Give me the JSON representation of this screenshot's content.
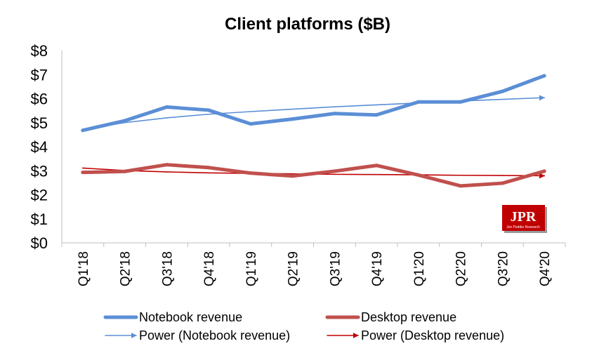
{
  "chart_data": {
    "type": "line",
    "title": "Client platforms ($B)",
    "xlabel": "",
    "ylabel": "",
    "categories": [
      "Q1'18",
      "Q2'18",
      "Q3'18",
      "Q4'18",
      "Q1'19",
      "Q2'19",
      "Q3'19",
      "Q4'19",
      "Q1'20",
      "Q2'20",
      "Q3'20",
      "Q4'20"
    ],
    "ylim": [
      0,
      8
    ],
    "yticks": [
      0,
      1,
      2,
      3,
      4,
      5,
      6,
      7,
      8
    ],
    "ytick_labels": [
      "$0",
      "$1",
      "$2",
      "$3",
      "$4",
      "$5",
      "$6",
      "$7",
      "$8"
    ],
    "grid": false,
    "legend_position": "bottom",
    "series": [
      {
        "name": "Notebook revenue",
        "kind": "line",
        "color": "#5b8ed6",
        "values": [
          4.68,
          5.08,
          5.65,
          5.52,
          4.95,
          5.15,
          5.38,
          5.32,
          5.86,
          5.86,
          6.3,
          6.95
        ]
      },
      {
        "name": "Desktop revenue",
        "kind": "line",
        "color": "#c0504d",
        "values": [
          2.93,
          2.97,
          3.25,
          3.13,
          2.9,
          2.78,
          2.98,
          3.22,
          2.82,
          2.37,
          2.48,
          2.98
        ]
      },
      {
        "name": "Power (Notebook revenue)",
        "kind": "trendline",
        "color": "#5b8ed6",
        "values": [
          4.72,
          5.0,
          5.2,
          5.35,
          5.46,
          5.56,
          5.66,
          5.74,
          5.82,
          5.9,
          5.97,
          6.04
        ]
      },
      {
        "name": "Power (Desktop revenue)",
        "kind": "trendline",
        "color": "#c00000",
        "values": [
          3.11,
          3.01,
          2.95,
          2.91,
          2.89,
          2.87,
          2.85,
          2.84,
          2.83,
          2.81,
          2.8,
          2.79
        ]
      }
    ]
  },
  "logo": {
    "main": "JPR",
    "sub": "Jon Peddie Research"
  }
}
